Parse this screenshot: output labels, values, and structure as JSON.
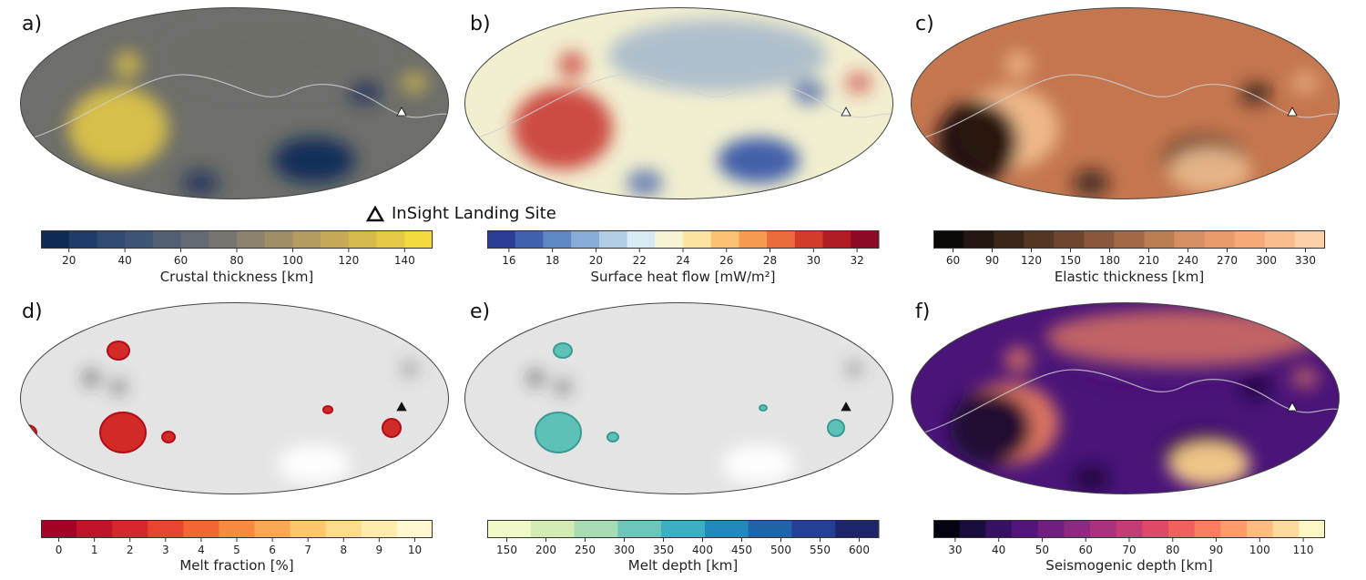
{
  "legend": {
    "label": "InSight Landing Site"
  },
  "panels": [
    {
      "id": "a",
      "letter": "a)",
      "title": "Crustal thickness [km]",
      "ticks": [
        "20",
        "40",
        "60",
        "80",
        "100",
        "120",
        "140"
      ],
      "colors": [
        "#0d2a55",
        "#1f3b68",
        "#2f4a73",
        "#3e5475",
        "#515e74",
        "#646a74",
        "#787570",
        "#8d836c",
        "#a08f64",
        "#b39c5d",
        "#c6a956",
        "#d7b84f",
        "#e6c947",
        "#f3da3d"
      ],
      "map_colors": {
        "base": "#6e6e6a",
        "hi": "#e9cd45",
        "lo": "#0e2a58"
      }
    },
    {
      "id": "b",
      "letter": "b)",
      "title": "Surface heat flow [mW/m²]",
      "ticks": [
        "16",
        "18",
        "20",
        "22",
        "24",
        "26",
        "28",
        "30",
        "32"
      ],
      "colors": [
        "#2a3d96",
        "#3f62ae",
        "#5d88c4",
        "#86acd6",
        "#b0cde5",
        "#d8eaf2",
        "#f7f4d4",
        "#fde3a0",
        "#fcc173",
        "#f79a52",
        "#ea6b3b",
        "#d23d2a",
        "#b01d26",
        "#8c0a26"
      ],
      "map_colors": {
        "base": "#f2efd0",
        "hi": "#c62f2c",
        "lo": "#3a5aa8"
      }
    },
    {
      "id": "c",
      "letter": "c)",
      "title": "Elastic thickness [km]",
      "ticks": [
        "60",
        "90",
        "120",
        "150",
        "180",
        "210",
        "240",
        "270",
        "300",
        "330"
      ],
      "colors": [
        "#0c0806",
        "#241711",
        "#3b2519",
        "#553523",
        "#6f452f",
        "#89573b",
        "#a36a48",
        "#bc7d55",
        "#d58f62",
        "#e89c6c",
        "#f5aa78",
        "#fbbd8d",
        "#fdd0a8"
      ],
      "map_colors": {
        "base": "#c4764f",
        "hi": "#f6c394",
        "lo": "#1b110c"
      }
    },
    {
      "id": "d",
      "letter": "d)",
      "title": "Melt fraction [%]",
      "ticks": [
        "0",
        "1",
        "2",
        "3",
        "4",
        "5",
        "6",
        "7",
        "8",
        "9",
        "10"
      ],
      "colors": [
        "#a50026",
        "#c0142a",
        "#d6272c",
        "#e8452f",
        "#f26535",
        "#f68a40",
        "#f9a955",
        "#fcc66d",
        "#fddb8c",
        "#feecad",
        "#fff8d2"
      ],
      "map_colors": {
        "base": "#e4e4e4",
        "hi": "#ffffff",
        "lo": "#d22a26"
      }
    },
    {
      "id": "e",
      "letter": "e)",
      "title": "Melt depth [km]",
      "ticks": [
        "150",
        "200",
        "250",
        "300",
        "350",
        "400",
        "450",
        "500",
        "550",
        "600"
      ],
      "colors": [
        "#f1f9c9",
        "#d3ecb4",
        "#a7dbb4",
        "#6ec5ba",
        "#3eaec3",
        "#2389bb",
        "#1f63a8",
        "#243f94",
        "#1c2569"
      ],
      "map_colors": {
        "base": "#e4e4e4",
        "hi": "#ffffff",
        "lo": "#5cc2b8"
      }
    },
    {
      "id": "f",
      "letter": "f)",
      "title": "Seismogenic depth [km]",
      "ticks": [
        "30",
        "40",
        "50",
        "60",
        "70",
        "80",
        "90",
        "100",
        "110"
      ],
      "colors": [
        "#030311",
        "#1a0d3e",
        "#371063",
        "#54157a",
        "#701f81",
        "#8c2981",
        "#a8327d",
        "#c43c75",
        "#de4968",
        "#f0605d",
        "#f97d5e",
        "#fd9b6b",
        "#febb80",
        "#fdda9c",
        "#fcf7c4"
      ],
      "map_colors": {
        "base": "#4a1478",
        "hi": "#f4855e",
        "lo": "#16092e"
      }
    }
  ]
}
